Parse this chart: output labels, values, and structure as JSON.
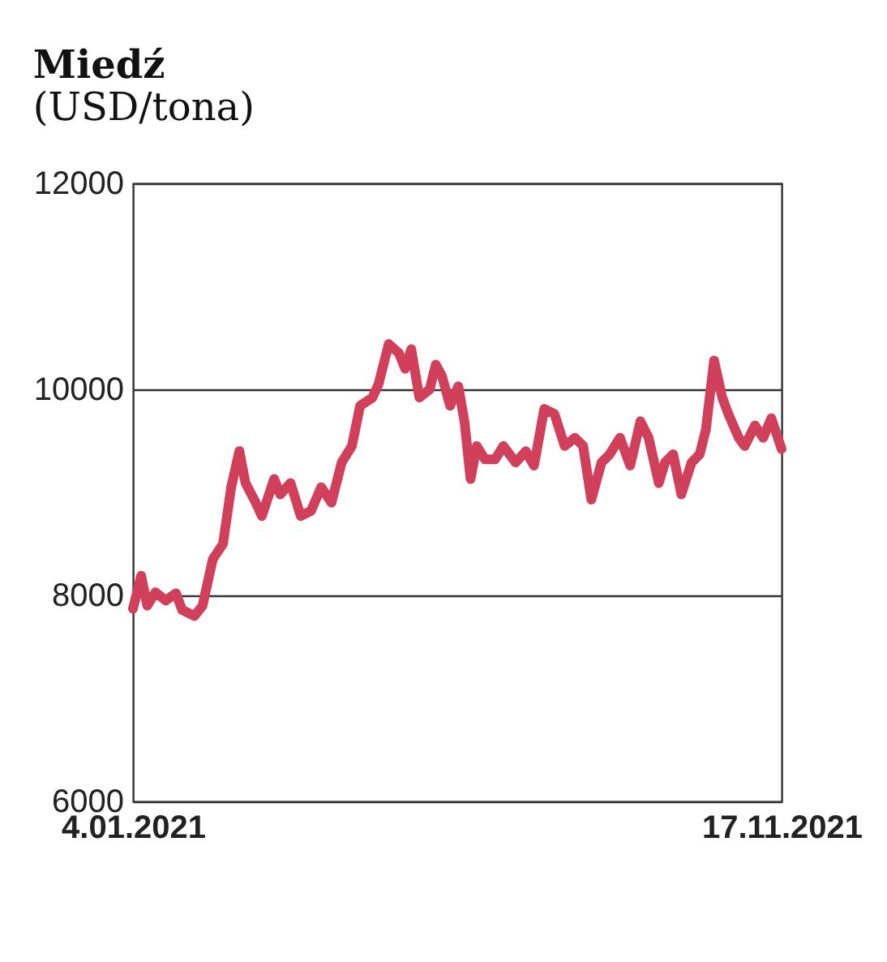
{
  "chart_data": {
    "type": "line",
    "title": "Miedź",
    "subtitle": "(USD/tona)",
    "x": [
      "2021-01-04",
      "2021-01-08",
      "2021-01-11",
      "2021-01-15",
      "2021-01-20",
      "2021-01-25",
      "2021-01-28",
      "2021-02-03",
      "2021-02-07",
      "2021-02-12",
      "2021-02-17",
      "2021-02-21",
      "2021-02-25",
      "2021-02-28",
      "2021-03-05",
      "2021-03-08",
      "2021-03-14",
      "2021-03-17",
      "2021-03-22",
      "2021-03-27",
      "2021-04-01",
      "2021-04-06",
      "2021-04-11",
      "2021-04-16",
      "2021-04-21",
      "2021-04-25",
      "2021-05-01",
      "2021-05-04",
      "2021-05-09",
      "2021-05-14",
      "2021-05-17",
      "2021-05-20",
      "2021-05-24",
      "2021-05-29",
      "2021-06-01",
      "2021-06-04",
      "2021-06-08",
      "2021-06-12",
      "2021-06-15",
      "2021-06-18",
      "2021-06-21",
      "2021-06-25",
      "2021-06-30",
      "2021-07-04",
      "2021-07-10",
      "2021-07-15",
      "2021-07-19",
      "2021-07-24",
      "2021-07-29",
      "2021-08-03",
      "2021-08-08",
      "2021-08-12",
      "2021-08-16",
      "2021-08-21",
      "2021-08-25",
      "2021-08-30",
      "2021-09-04",
      "2021-09-09",
      "2021-09-13",
      "2021-09-18",
      "2021-09-21",
      "2021-09-25",
      "2021-09-29",
      "2021-10-04",
      "2021-10-08",
      "2021-10-11",
      "2021-10-15",
      "2021-10-19",
      "2021-10-22",
      "2021-10-27",
      "2021-10-30",
      "2021-11-04",
      "2021-11-08",
      "2021-11-12",
      "2021-11-17"
    ],
    "series": [
      {
        "color": "#d0405a",
        "values": [
          7870,
          8190,
          7900,
          8030,
          7950,
          8020,
          7860,
          7800,
          7900,
          8350,
          8500,
          9050,
          9400,
          9090,
          8900,
          8770,
          9130,
          8980,
          9090,
          8770,
          8820,
          9050,
          8900,
          9290,
          9450,
          9840,
          9920,
          10050,
          10440,
          10350,
          10200,
          10390,
          9920,
          10000,
          10240,
          10130,
          9840,
          10030,
          9690,
          9130,
          9450,
          9320,
          9320,
          9450,
          9290,
          9400,
          9260,
          9810,
          9760,
          9450,
          9530,
          9450,
          8930,
          9290,
          9370,
          9530,
          9260,
          9690,
          9530,
          9090,
          9290,
          9370,
          8980,
          9290,
          9370,
          9610,
          10280,
          9920,
          9760,
          9530,
          9450,
          9650,
          9530,
          9720,
          9420
        ]
      }
    ],
    "xlim": [
      "2021-01-04",
      "2021-11-17"
    ],
    "xticks": [
      {
        "value": "2021-01-04",
        "label": "4.01.2021"
      },
      {
        "value": "2021-11-17",
        "label": "17.11.2021"
      }
    ],
    "ylim": [
      6000,
      12000
    ],
    "yticks": [
      6000,
      8000,
      10000,
      12000
    ],
    "grid": "y",
    "marker": "none",
    "line_style": "solid"
  }
}
